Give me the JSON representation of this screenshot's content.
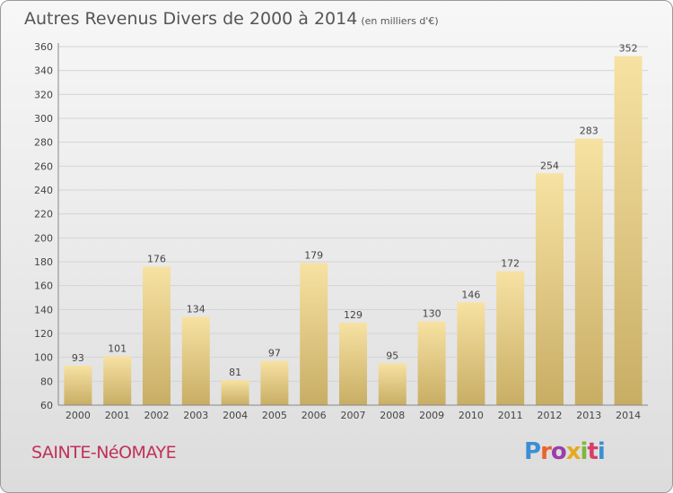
{
  "header": {
    "title": "Autres Revenus Divers de 2000 à 2014",
    "unit": "(en milliers d'€)"
  },
  "footer": {
    "town": "SAINTE-NéOMAYE",
    "logo_text": "Proxiti",
    "logo_letter_colors": [
      "#3b8fd4",
      "#e8652b",
      "#9b3fa8",
      "#e6a921",
      "#7db83a",
      "#d63f6a",
      "#3b8fd4"
    ]
  },
  "colors": {
    "bar_light": "#f7e2a3",
    "bar_dark": "#c8ad64",
    "grid": "#d4d4d4",
    "axis_text": "#444444"
  },
  "chart_data": {
    "type": "bar",
    "categories": [
      "2000",
      "2001",
      "2002",
      "2003",
      "2004",
      "2005",
      "2006",
      "2007",
      "2008",
      "2009",
      "2010",
      "2011",
      "2012",
      "2013",
      "2014"
    ],
    "values": [
      93,
      101,
      176,
      134,
      81,
      97,
      179,
      129,
      95,
      130,
      146,
      172,
      254,
      283,
      352
    ],
    "ylim": [
      60,
      360
    ],
    "yticks": [
      60,
      80,
      100,
      120,
      140,
      160,
      180,
      200,
      220,
      240,
      260,
      280,
      300,
      320,
      340,
      360
    ],
    "grid": true,
    "data_labels": true
  }
}
